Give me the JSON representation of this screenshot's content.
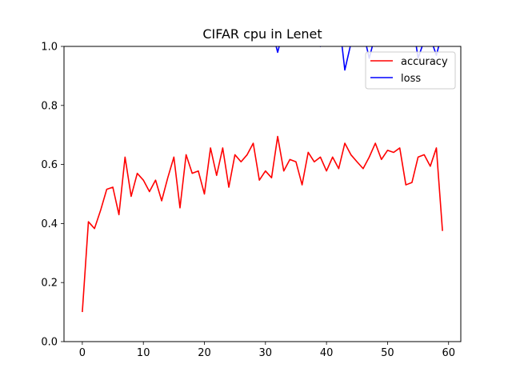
{
  "chart_data": {
    "type": "line",
    "title": "CIFAR cpu in Lenet",
    "xlabel": "",
    "ylabel": "",
    "xlim": [
      -3,
      62
    ],
    "ylim": [
      0.0,
      1.0
    ],
    "xticks": [
      0,
      10,
      20,
      30,
      40,
      50,
      60
    ],
    "yticks": [
      0.0,
      0.2,
      0.4,
      0.6,
      0.8,
      1.0
    ],
    "xtick_labels": [
      "0",
      "10",
      "20",
      "30",
      "40",
      "50",
      "60"
    ],
    "ytick_labels": [
      "0.0",
      "0.2",
      "0.4",
      "0.6",
      "0.8",
      "1.0"
    ],
    "grid": false,
    "legend_position": "top-right",
    "series": [
      {
        "name": "accuracy",
        "color": "#ff0000",
        "x": [
          0,
          1,
          2,
          3,
          4,
          5,
          6,
          7,
          8,
          9,
          10,
          11,
          12,
          13,
          14,
          15,
          16,
          17,
          18,
          19,
          20,
          21,
          22,
          23,
          24,
          25,
          26,
          27,
          28,
          29,
          30,
          31,
          32,
          33,
          34,
          35,
          36,
          37,
          38,
          39,
          40,
          41,
          42,
          43,
          44,
          45,
          46,
          47,
          48,
          49,
          50,
          51,
          52,
          53,
          54,
          55,
          56,
          57,
          58,
          59
        ],
        "values": [
          0.1,
          0.406,
          0.383,
          0.445,
          0.516,
          0.523,
          0.43,
          0.625,
          0.492,
          0.57,
          0.547,
          0.508,
          0.547,
          0.477,
          0.555,
          0.625,
          0.453,
          0.633,
          0.57,
          0.578,
          0.5,
          0.656,
          0.563,
          0.656,
          0.523,
          0.633,
          0.609,
          0.633,
          0.672,
          0.547,
          0.578,
          0.555,
          0.695,
          0.578,
          0.617,
          0.609,
          0.531,
          0.641,
          0.609,
          0.625,
          0.578,
          0.625,
          0.586,
          0.672,
          0.633,
          0.609,
          0.586,
          0.625,
          0.672,
          0.617,
          0.648,
          0.641,
          0.656,
          0.531,
          0.539,
          0.625,
          0.633,
          0.594,
          0.656,
          0.375
        ]
      },
      {
        "name": "loss",
        "color": "#0000ff",
        "x": [
          31,
          32,
          33,
          37,
          38,
          39,
          40,
          42,
          43,
          44,
          45,
          46,
          47,
          48,
          54,
          55,
          56,
          57,
          58,
          59
        ],
        "values": [
          1.06,
          0.98,
          1.06,
          1.04,
          1.08,
          1.0,
          1.08,
          1.1,
          0.92,
          1.01,
          1.12,
          1.05,
          0.96,
          1.04,
          1.1,
          0.96,
          1.02,
          1.03,
          0.97,
          1.05
        ]
      }
    ]
  }
}
